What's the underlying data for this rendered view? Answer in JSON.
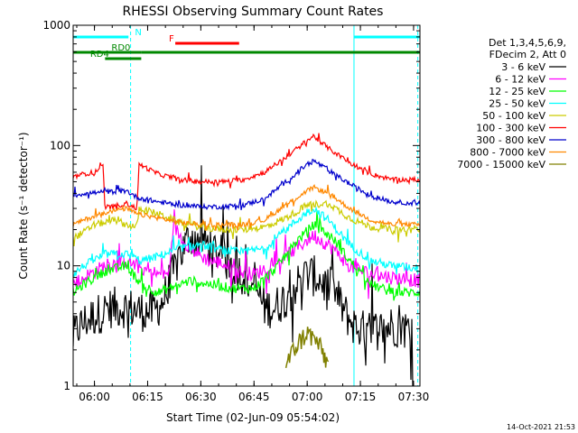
{
  "chart_data": {
    "type": "line",
    "title": "RHESSI Observing Summary Count Rates",
    "xlabel": "Start Time (02-Jun-09 05:54:02)",
    "ylabel": "Count Rate (s⁻¹ detector⁻¹)",
    "y_scale": "log",
    "xlim": [
      5.9,
      7.53
    ],
    "ylim": [
      1,
      1000
    ],
    "x_units": "hours of day",
    "x_ticks": [
      {
        "value": 6.0,
        "label": "06:00"
      },
      {
        "value": 6.25,
        "label": "06:15"
      },
      {
        "value": 6.5,
        "label": "06:30"
      },
      {
        "value": 6.75,
        "label": "06:45"
      },
      {
        "value": 7.0,
        "label": "07:00"
      },
      {
        "value": 7.25,
        "label": "07:15"
      },
      {
        "value": 7.5,
        "label": "07:30"
      }
    ],
    "y_ticks": [
      {
        "value": 1,
        "label": "1"
      },
      {
        "value": 10,
        "label": "10"
      },
      {
        "value": 100,
        "label": "100"
      },
      {
        "value": 1000,
        "label": "1000"
      }
    ],
    "legend_header": [
      "Det 1,3,4,5,6,9,",
      "FDecim 2, Att 0"
    ],
    "legend_position": "right",
    "series": [
      {
        "name": "3 - 6 keV",
        "color": "#000000",
        "noise": 0.35,
        "x": [
          5.9,
          5.92,
          5.96,
          6.02,
          6.08,
          6.15,
          6.22,
          6.28,
          6.32,
          6.4,
          6.45,
          6.52,
          6.6,
          6.65,
          6.75,
          6.8,
          6.85,
          6.9,
          6.95,
          7.0,
          7.05,
          7.08,
          7.12,
          7.18,
          7.22,
          7.25,
          7.28,
          7.35,
          7.4,
          7.45,
          7.5
        ],
        "y": [
          2.5,
          3.0,
          3.5,
          4.0,
          4.5,
          4.5,
          4.2,
          4.2,
          5.0,
          12,
          18,
          16,
          12,
          10,
          7,
          4.5,
          4.5,
          5.5,
          7,
          8.5,
          8,
          7,
          6.5,
          4,
          3.2,
          3.0,
          2.8,
          3.0,
          3.2,
          3.0,
          3.0
        ]
      },
      {
        "name": "6 - 12 keV",
        "color": "#ff00ff",
        "noise": 0.12,
        "x": [
          5.9,
          5.95,
          6.05,
          6.15,
          6.22,
          6.3,
          6.35,
          6.37,
          6.4,
          6.45,
          6.5,
          6.55,
          6.6,
          6.67,
          6.75,
          6.85,
          6.95,
          7.03,
          7.12,
          7.2,
          7.3,
          7.4,
          7.53
        ],
        "y": [
          7.0,
          8.0,
          10.0,
          11.0,
          9.5,
          8.5,
          8.5,
          22,
          18,
          14,
          12,
          11,
          10.5,
          9.0,
          8.5,
          10.5,
          14,
          18,
          14,
          10,
          8.5,
          8.0,
          7.5
        ]
      },
      {
        "name": "12 - 25 keV",
        "color": "#00ff00",
        "noise": 0.08,
        "x": [
          5.9,
          5.95,
          6.05,
          6.15,
          6.22,
          6.3,
          6.35,
          6.45,
          6.55,
          6.65,
          6.75,
          6.85,
          6.95,
          7.03,
          7.12,
          7.2,
          7.3,
          7.4,
          7.53
        ],
        "y": [
          6.0,
          7.0,
          9.0,
          10.0,
          7.0,
          6.0,
          6.5,
          7.5,
          7.0,
          6.5,
          6.5,
          9.5,
          16,
          22,
          17,
          11,
          7.0,
          6.0,
          6.0
        ]
      },
      {
        "name": "25 - 50 keV",
        "color": "#00ffff",
        "noise": 0.07,
        "x": [
          5.9,
          5.95,
          6.05,
          6.15,
          6.22,
          6.3,
          6.4,
          6.5,
          6.6,
          6.7,
          6.8,
          6.9,
          7.0,
          7.03,
          7.1,
          7.2,
          7.3,
          7.4,
          7.53
        ],
        "y": [
          8.5,
          10.0,
          12.5,
          12.5,
          11.0,
          12.0,
          14.0,
          15.0,
          13.5,
          13.0,
          14.0,
          20.0,
          28.0,
          30.0,
          24.0,
          15.0,
          11.0,
          10.0,
          9.5
        ]
      },
      {
        "name": "50 - 100 keV",
        "color": "#cccc00",
        "noise": 0.06,
        "x": [
          5.9,
          5.95,
          6.0,
          6.05,
          6.1,
          6.15,
          6.2,
          6.21,
          6.3,
          6.4,
          6.5,
          6.6,
          6.7,
          6.8,
          6.9,
          7.0,
          7.1,
          7.2,
          7.3,
          7.4,
          7.53
        ],
        "y": [
          17,
          19,
          22,
          23,
          24,
          22,
          21,
          30,
          27,
          23,
          21,
          20,
          20,
          21,
          25,
          32,
          33,
          25,
          21,
          20,
          20
        ]
      },
      {
        "name": "100 - 300 keV",
        "color": "#ff0000",
        "noise": 0.04,
        "x": [
          5.9,
          5.95,
          6.0,
          6.04,
          6.05,
          6.15,
          6.2,
          6.21,
          6.3,
          6.4,
          6.5,
          6.6,
          6.7,
          6.8,
          6.9,
          7.0,
          7.03,
          7.1,
          7.2,
          7.3,
          7.4,
          7.53
        ],
        "y": [
          55,
          58,
          60,
          68,
          30,
          33,
          30,
          70,
          58,
          52,
          50,
          50,
          52,
          60,
          80,
          110,
          120,
          95,
          72,
          58,
          52,
          52
        ]
      },
      {
        "name": "300 - 800 keV",
        "color": "#0000cc",
        "noise": 0.04,
        "x": [
          5.9,
          5.95,
          6.05,
          6.15,
          6.2,
          6.3,
          6.4,
          6.5,
          6.6,
          6.7,
          6.8,
          6.9,
          7.0,
          7.03,
          7.1,
          7.2,
          7.3,
          7.4,
          7.53
        ],
        "y": [
          38,
          40,
          41,
          42,
          37,
          34,
          32,
          31,
          31,
          32,
          36,
          50,
          70,
          75,
          62,
          48,
          38,
          34,
          33
        ]
      },
      {
        "name": "800 - 7000 keV",
        "color": "#ff8800",
        "noise": 0.04,
        "x": [
          5.9,
          5.95,
          6.05,
          6.15,
          6.2,
          6.3,
          6.4,
          6.5,
          6.6,
          6.7,
          6.8,
          6.9,
          7.0,
          7.03,
          7.1,
          7.2,
          7.3,
          7.4,
          7.53
        ],
        "y": [
          22,
          24,
          28,
          30,
          27,
          25,
          23,
          22,
          22,
          22,
          24,
          32,
          42,
          45,
          40,
          30,
          24,
          22,
          22
        ]
      },
      {
        "name": "7000 - 15000 keV",
        "color": "#808000",
        "noise": 0.0,
        "x": [
          6.9,
          6.95,
          7.0,
          7.05,
          7.1
        ],
        "y": [
          1.5,
          2.2,
          2.8,
          2.3,
          1.5
        ]
      }
    ],
    "flag_bars": [
      {
        "label": "N",
        "color": "#00ffff",
        "row": "top",
        "segments": [
          [
            5.9,
            6.16
          ],
          [
            7.22,
            7.53
          ]
        ],
        "label_x": 6.19
      },
      {
        "label": "F",
        "color": "#ff0000",
        "row": "top2",
        "segments": [
          [
            6.38,
            6.68
          ]
        ],
        "label_x": 6.35
      },
      {
        "label": "RD0",
        "color": "#008800",
        "row": "upper",
        "segments": [
          [
            5.9,
            6.22
          ],
          [
            6.22,
            7.53
          ]
        ],
        "label_x": 6.08
      },
      {
        "label": "RD4",
        "color": "#008800",
        "row": "lower",
        "segments": [
          [
            6.05,
            6.22
          ]
        ],
        "label_x": 5.98
      }
    ],
    "vertical_markers": [
      {
        "x": 5.9,
        "color": "#00ffff",
        "style": "solid"
      },
      {
        "x": 6.17,
        "color": "#00ffff",
        "style": "dashed"
      },
      {
        "x": 7.22,
        "color": "#00ffff",
        "style": "solid"
      },
      {
        "x": 7.52,
        "color": "#00ffff",
        "style": "dashed"
      }
    ],
    "footer_timestamp": "14-Oct-2021 21:53"
  }
}
